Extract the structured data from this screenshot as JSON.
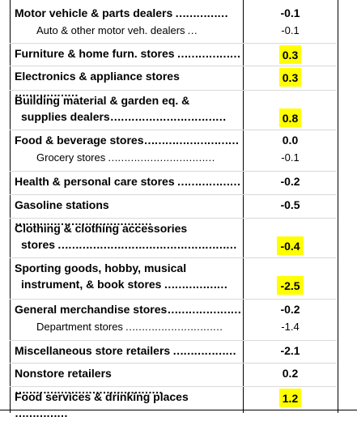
{
  "rows": [
    {
      "label": "Motor vehicle & parts dealers",
      "dots": " ……………",
      "value": "-0.1",
      "type": "main",
      "highlight": false
    },
    {
      "label": "Auto & other motor veh. dealers",
      "dots": " …",
      "value": "-0.1",
      "type": "sub",
      "highlight": false
    },
    {
      "label": "Furniture & home furn. stores",
      "dots": " ………………",
      "value": "0.3",
      "type": "main",
      "highlight": true
    },
    {
      "label": "Electronics & appliance stores",
      "dots": " ………………",
      "value": "0.3",
      "type": "main",
      "highlight": true
    },
    {
      "label_line1": "Building material & garden eq. &",
      "label_line2": "supplies dealers",
      "dots": "……………………………",
      "value": "0.8",
      "type": "main",
      "highlight": true
    },
    {
      "label": "Food & beverage stores",
      "dots": "………………………",
      "value": "0.0",
      "type": "main",
      "highlight": false
    },
    {
      "label": "Grocery stores",
      "dots": " ……………………………",
      "value": "-0.1",
      "type": "sub",
      "highlight": false
    },
    {
      "label": "Health & personal care stores",
      "dots": " ………………",
      "value": "-0.2",
      "type": "main",
      "highlight": false
    },
    {
      "label": "Gasoline stations",
      "dots": " …………………………………",
      "value": "-0.5",
      "type": "main",
      "highlight": false
    },
    {
      "label_line1": "Clothing & clothing accessories",
      "label_line2": "stores",
      "dots": " ……………………………………………",
      "value": "-0.4",
      "type": "main",
      "highlight": true
    },
    {
      "label_line1": "Sporting goods, hobby, musical",
      "label_line2": "instrument, & book stores",
      "dots": " ………………",
      "value": "-2.5",
      "type": "main",
      "highlight": true
    },
    {
      "label": "General merchandise stores",
      "dots": "…………………",
      "value": "-0.2",
      "type": "main",
      "highlight": false
    },
    {
      "label": "Department stores",
      "dots": " …………………………",
      "value": "-1.4",
      "type": "sub",
      "highlight": false
    },
    {
      "label": "Miscellaneous store retailers",
      "dots": " ………………",
      "value": "-2.1",
      "type": "main",
      "highlight": false
    },
    {
      "label": "Nonstore retailers",
      "dots": " ……………………………………",
      "value": "0.2",
      "type": "main",
      "highlight": false
    },
    {
      "label": "Food services & drinking places",
      "dots": " ……………",
      "value": "1.2",
      "type": "main",
      "highlight": true
    }
  ]
}
